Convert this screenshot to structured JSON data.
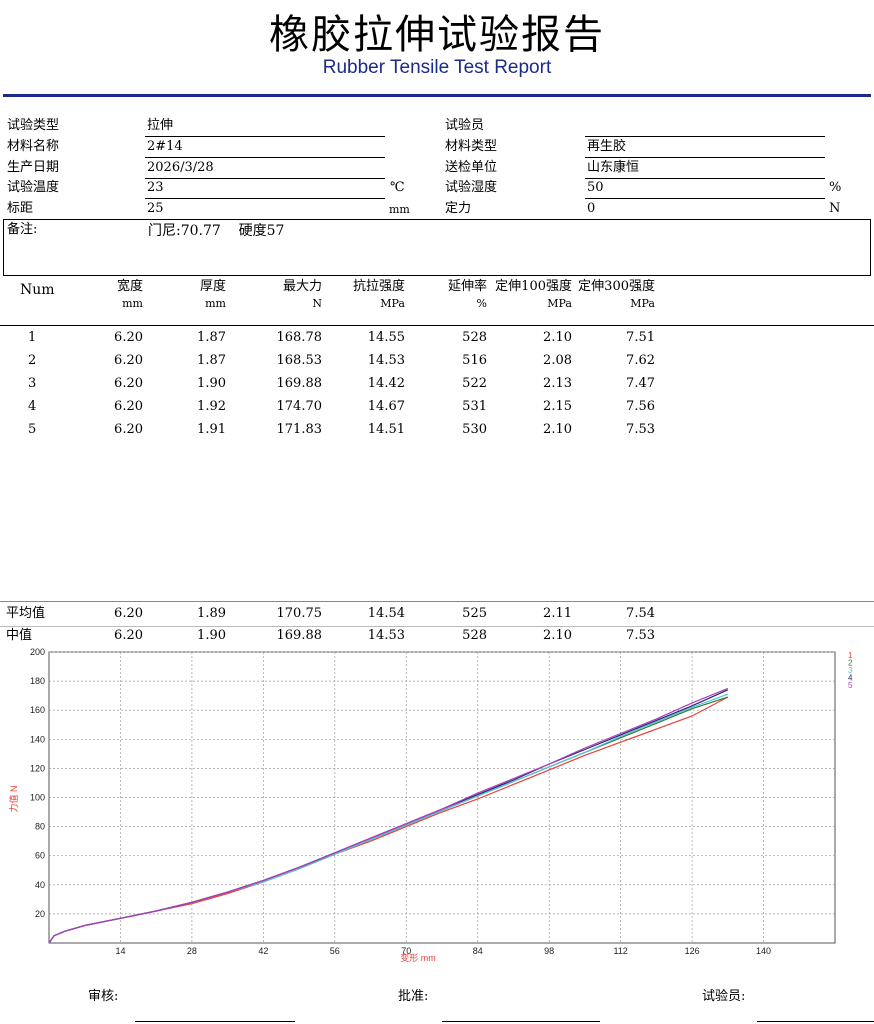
{
  "header": {
    "title": "橡胶拉伸试验报告",
    "subtitle": "Rubber Tensile Test Report"
  },
  "info": {
    "test_type": {
      "label": "试验类型",
      "value": "拉伸"
    },
    "tester": {
      "label": "试验员",
      "value": ""
    },
    "material_name": {
      "label": "材料名称",
      "value": "2#14"
    },
    "material_type": {
      "label": "材料类型",
      "value": "再生胶"
    },
    "production_date": {
      "label": "生产日期",
      "value": "2026/3/28"
    },
    "inspection_unit": {
      "label": "送检单位",
      "value": "山东康恒"
    },
    "test_temp": {
      "label": "试验温度",
      "value": "23",
      "unit": "℃"
    },
    "test_humidity": {
      "label": "试验湿度",
      "value": "50",
      "unit": "%"
    },
    "gauge_length": {
      "label": "标距",
      "value": "25",
      "unit": "mm"
    },
    "fixed_force": {
      "label": "定力",
      "value": "0",
      "unit": "N"
    },
    "remark": {
      "label": "备注:",
      "value": "门尼:70.77    硬度57"
    }
  },
  "table": {
    "columns": [
      {
        "label": "Num",
        "unit": ""
      },
      {
        "label": "宽度",
        "unit": "mm"
      },
      {
        "label": "厚度",
        "unit": "mm"
      },
      {
        "label": "最大力",
        "unit": "N"
      },
      {
        "label": "抗拉强度",
        "unit": "MPa"
      },
      {
        "label": "延伸率",
        "unit": "%"
      },
      {
        "label": "定伸100强度",
        "unit": "MPa"
      },
      {
        "label": "定伸300强度",
        "unit": "MPa"
      }
    ],
    "rows": [
      [
        "1",
        "6.20",
        "1.87",
        "168.78",
        "14.55",
        "528",
        "2.10",
        "7.51"
      ],
      [
        "2",
        "6.20",
        "1.87",
        "168.53",
        "14.53",
        "516",
        "2.08",
        "7.62"
      ],
      [
        "3",
        "6.20",
        "1.90",
        "169.88",
        "14.42",
        "522",
        "2.13",
        "7.47"
      ],
      [
        "4",
        "6.20",
        "1.92",
        "174.70",
        "14.67",
        "531",
        "2.15",
        "7.56"
      ],
      [
        "5",
        "6.20",
        "1.91",
        "171.83",
        "14.51",
        "530",
        "2.10",
        "7.53"
      ]
    ],
    "summary": [
      [
        "平均值",
        "6.20",
        "1.89",
        "170.75",
        "14.54",
        "525",
        "2.11",
        "7.54"
      ],
      [
        "中值",
        "6.20",
        "1.90",
        "169.88",
        "14.53",
        "528",
        "2.10",
        "7.53"
      ]
    ]
  },
  "chart_data": {
    "type": "line",
    "xlabel": "变形 mm",
    "ylabel": "力值 N",
    "xlim": [
      0,
      154
    ],
    "ylim": [
      0,
      200
    ],
    "x_ticks": [
      14,
      28,
      42,
      56,
      70,
      84,
      98,
      112,
      126,
      140
    ],
    "y_ticks": [
      20,
      40,
      60,
      80,
      100,
      120,
      140,
      160,
      180,
      200
    ],
    "grid": true,
    "legend_position": "right",
    "x": [
      0,
      1,
      3,
      7,
      14,
      21,
      28,
      35,
      42,
      49,
      56,
      63,
      70,
      77,
      84,
      91,
      98,
      105,
      112,
      119,
      126,
      133
    ],
    "series": [
      {
        "name": "1",
        "color": "#e8403a",
        "values": [
          0,
          5,
          8,
          12,
          17,
          22,
          27,
          34,
          42,
          51,
          61,
          70,
          80,
          90,
          99,
          109,
          119,
          129,
          138,
          147,
          156,
          169
        ]
      },
      {
        "name": "2",
        "color": "#2e7d32",
        "values": [
          0,
          5,
          8,
          12,
          17,
          22,
          28,
          35,
          43,
          52,
          61,
          71,
          81,
          91,
          101,
          111,
          121,
          131,
          141,
          151,
          161,
          169
        ]
      },
      {
        "name": "3",
        "color": "#5bc0d8",
        "values": [
          0,
          5,
          8,
          12,
          17,
          22,
          28,
          35,
          42,
          51,
          61,
          71,
          81,
          91,
          101,
          111,
          121,
          131,
          142,
          152,
          162,
          171
        ]
      },
      {
        "name": "4",
        "color": "#1f2a6e",
        "values": [
          0,
          5,
          8,
          12,
          17,
          22,
          28,
          35,
          43,
          52,
          62,
          72,
          82,
          92,
          102,
          112,
          123,
          133,
          143,
          153,
          163,
          174
        ]
      },
      {
        "name": "5",
        "color": "#b03dbf",
        "values": [
          0,
          5,
          8,
          12,
          17,
          22,
          28,
          35,
          43,
          52,
          62,
          72,
          82,
          92,
          103,
          113,
          123,
          134,
          144,
          154,
          165,
          175
        ]
      }
    ]
  },
  "signatures": {
    "reviewer": "审核:",
    "approver": "批准:",
    "tester": "试验员:"
  }
}
